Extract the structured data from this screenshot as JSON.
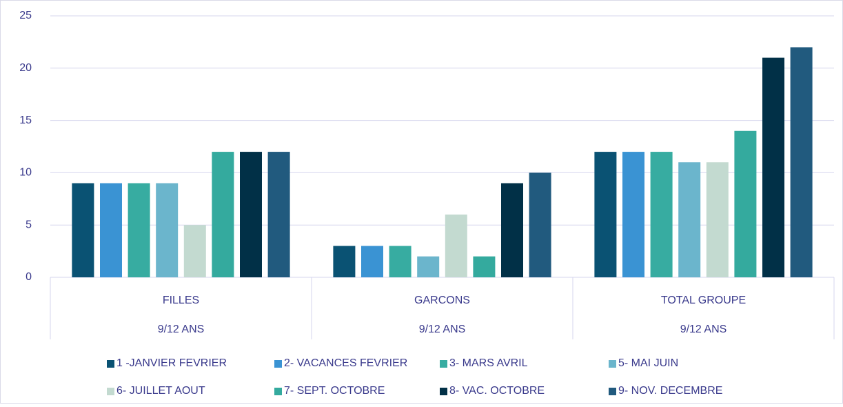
{
  "chart_data": {
    "type": "bar",
    "categories": [
      "FILLES",
      "GARCONS",
      "TOTAL GROUPE"
    ],
    "subcategories": [
      "9/12 ANS",
      "9/12 ANS",
      "9/12 ANS"
    ],
    "series": [
      {
        "name": "1 -JANVIER FEVRIER",
        "color": "#0a5273",
        "values": [
          9,
          3,
          12
        ]
      },
      {
        "name": "2- VACANCES FEVRIER",
        "color": "#3a93d3",
        "values": [
          9,
          3,
          12
        ]
      },
      {
        "name": "3- MARS AVRIL",
        "color": "#37aca1",
        "values": [
          9,
          3,
          12
        ]
      },
      {
        "name": "5- MAI JUIN",
        "color": "#6bb5cc",
        "values": [
          9,
          2,
          11
        ]
      },
      {
        "name": "6- JUILLET AOUT",
        "color": "#c3dad0",
        "values": [
          5,
          6,
          11
        ]
      },
      {
        "name": "7- SEPT. OCTOBRE",
        "color": "#34aa9e",
        "values": [
          12,
          2,
          14
        ]
      },
      {
        "name": "8- VAC. OCTOBRE",
        "color": "#013047",
        "values": [
          12,
          9,
          21
        ]
      },
      {
        "name": "9- NOV. DECEMBRE",
        "color": "#215a7e",
        "values": [
          12,
          10,
          22
        ]
      }
    ],
    "ylim": [
      0,
      25
    ],
    "yticks": [
      0,
      5,
      10,
      15,
      20,
      25
    ],
    "grid": true,
    "legend": "bottom"
  }
}
